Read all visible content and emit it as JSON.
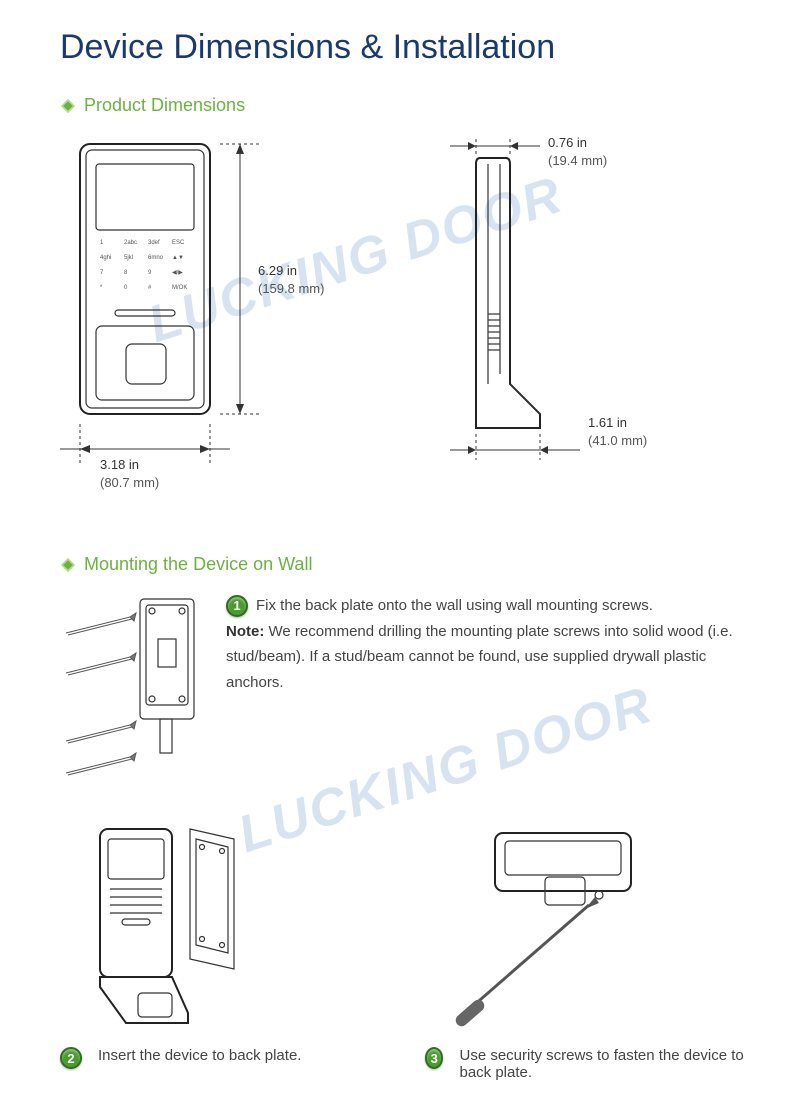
{
  "title": "Device Dimensions & Installation",
  "watermark": "LUCKING DOOR",
  "colors": {
    "title": "#1a3a6e",
    "section_green": "#6bb340",
    "step_bg": "#4b9b2f",
    "step_border": "#2f6e1e",
    "watermark": "#b8cde6",
    "text": "#333333",
    "subtext": "#555555"
  },
  "sections": {
    "dimensions": {
      "heading": "Product Dimensions",
      "front": {
        "height_in": "6.29 in",
        "height_mm": "(159.8 mm)",
        "width_in": "3.18 in",
        "width_mm": "(80.7 mm)",
        "keypad": [
          [
            "1",
            "2abc",
            "3def",
            "ESC"
          ],
          [
            "4ghi",
            "5jkl",
            "6mno",
            "▲▼"
          ],
          [
            "7",
            "8",
            "9",
            "◀/▶"
          ],
          [
            "*",
            "0",
            "#",
            "M/OK"
          ]
        ]
      },
      "side": {
        "depth_in": "0.76 in",
        "depth_mm": "(19.4 mm)",
        "base_in": "1.61 in",
        "base_mm": "(41.0 mm)"
      }
    },
    "mounting": {
      "heading": "Mounting the Device on Wall",
      "steps": [
        {
          "num": "1",
          "text": "Fix the back plate onto the wall using wall mounting screws.",
          "note": "We recommend drilling the mounting plate screws into solid wood (i.e. stud/beam). If a stud/beam cannot be found, use supplied drywall plastic anchors."
        },
        {
          "num": "2",
          "text": "Insert the device to back plate."
        },
        {
          "num": "3",
          "text": "Use security screws to fasten the device to back plate."
        }
      ]
    }
  }
}
